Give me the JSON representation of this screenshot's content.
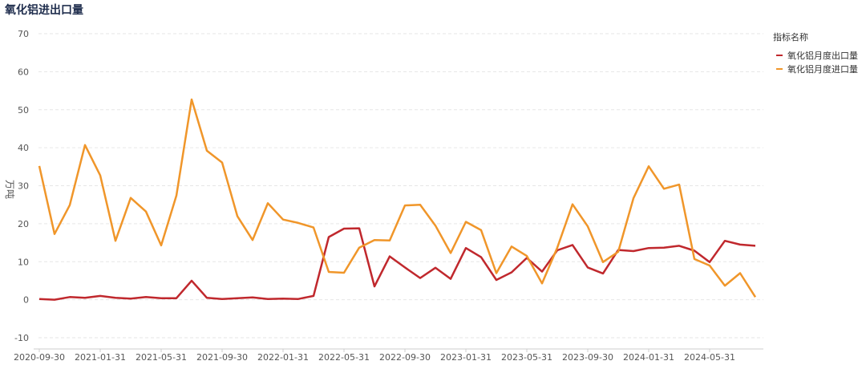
{
  "chart_data": {
    "type": "line",
    "title": "氧化铝进出口量",
    "ylabel": "万吨",
    "ylim": [
      -10,
      70
    ],
    "yticks": [
      -10,
      0,
      10,
      20,
      30,
      40,
      50,
      60,
      70
    ],
    "grid": true,
    "legend_position": "top-right",
    "legend_title": "指标名称",
    "x_tick_labels": [
      "2020-09-30",
      "2021-01-31",
      "2021-05-31",
      "2021-09-30",
      "2022-01-31",
      "2022-05-31",
      "2022-09-30",
      "2023-01-31",
      "2023-05-31",
      "2023-09-30",
      "2024-01-31",
      "2024-05-31"
    ],
    "x": [
      "2020-09",
      "2020-10",
      "2020-11",
      "2020-12",
      "2021-01",
      "2021-02",
      "2021-03",
      "2021-04",
      "2021-05",
      "2021-06",
      "2021-07",
      "2021-08",
      "2021-09",
      "2021-10",
      "2021-11",
      "2021-12",
      "2022-01",
      "2022-02",
      "2022-03",
      "2022-04",
      "2022-05",
      "2022-06",
      "2022-07",
      "2022-08",
      "2022-09",
      "2022-10",
      "2022-11",
      "2022-12",
      "2023-01",
      "2023-02",
      "2023-03",
      "2023-04",
      "2023-05",
      "2023-06",
      "2023-07",
      "2023-08",
      "2023-09",
      "2023-10",
      "2023-11",
      "2023-12",
      "2024-01",
      "2024-02",
      "2024-03",
      "2024-04",
      "2024-05",
      "2024-06",
      "2024-07",
      "2024-08"
    ],
    "series": [
      {
        "name": "氧化铝月度出口量",
        "color": "#c0282d",
        "values": [
          0.2,
          0,
          0.7,
          0.5,
          1.0,
          0.5,
          0.3,
          0.7,
          0.4,
          0.4,
          5.0,
          0.5,
          0.2,
          0.4,
          0.6,
          0.2,
          0.3,
          0.2,
          1.0,
          16.5,
          18.7,
          18.8,
          3.5,
          11.4,
          8.5,
          5.7,
          8.4,
          5.5,
          13.6,
          11.2,
          5.2,
          7.2,
          11.0,
          7.4,
          13.0,
          14.4,
          8.5,
          6.9,
          13.1,
          12.8,
          13.6,
          13.7,
          14.2,
          12.9,
          9.9,
          15.5,
          14.5,
          14.2
        ]
      },
      {
        "name": "氧化铝月度进口量",
        "color": "#f0962a",
        "values": [
          35.2,
          17.3,
          24.9,
          40.7,
          32.7,
          15.5,
          26.8,
          23.2,
          14.3,
          27.4,
          52.7,
          39.2,
          36.1,
          22.0,
          15.7,
          25.4,
          21.1,
          20.2,
          19.0,
          7.3,
          7.1,
          13.7,
          15.7,
          15.6,
          24.8,
          25.0,
          19.5,
          12.3,
          20.5,
          18.3,
          7.0,
          14.0,
          11.5,
          4.3,
          13.7,
          25.1,
          19.3,
          9.9,
          12.6,
          26.7,
          35.1,
          29.2,
          30.3,
          10.7,
          9.0,
          3.7,
          7.0,
          0.7
        ]
      }
    ]
  }
}
